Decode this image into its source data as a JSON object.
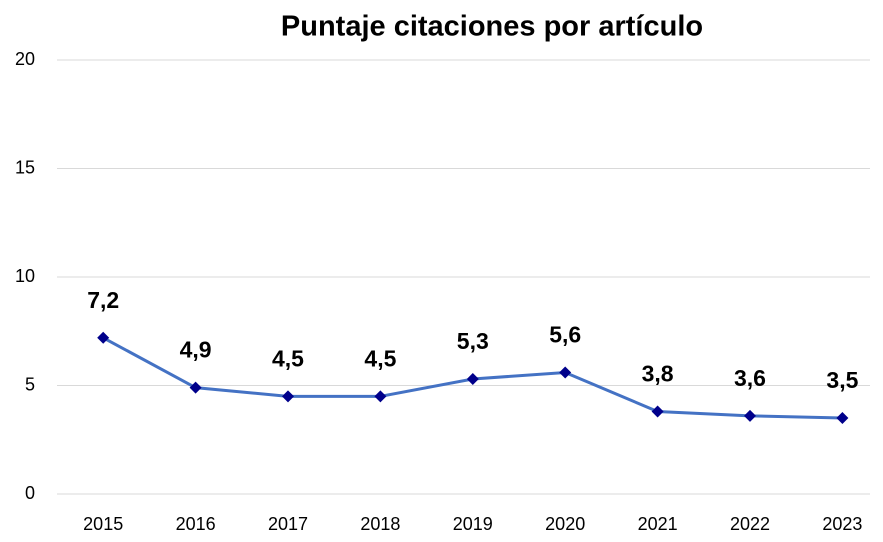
{
  "chart_data": {
    "type": "line",
    "title": "Puntaje citaciones por artículo",
    "categories": [
      "2015",
      "2016",
      "2017",
      "2018",
      "2019",
      "2020",
      "2021",
      "2022",
      "2023"
    ],
    "series": [
      {
        "name": "Puntaje citaciones por artículo",
        "color": "#4472c4",
        "marker_color": "#00008b",
        "values": [
          7.2,
          4.9,
          4.5,
          4.5,
          5.3,
          5.6,
          3.8,
          3.6,
          3.5
        ],
        "value_labels": [
          "7,2",
          "4,9",
          "4,5",
          "4,5",
          "5,3",
          "5,6",
          "3,8",
          "3,6",
          "3,5"
        ]
      }
    ],
    "ylim": [
      0,
      20
    ],
    "yticks": [
      0,
      5,
      10,
      15,
      20
    ],
    "grid": true
  }
}
